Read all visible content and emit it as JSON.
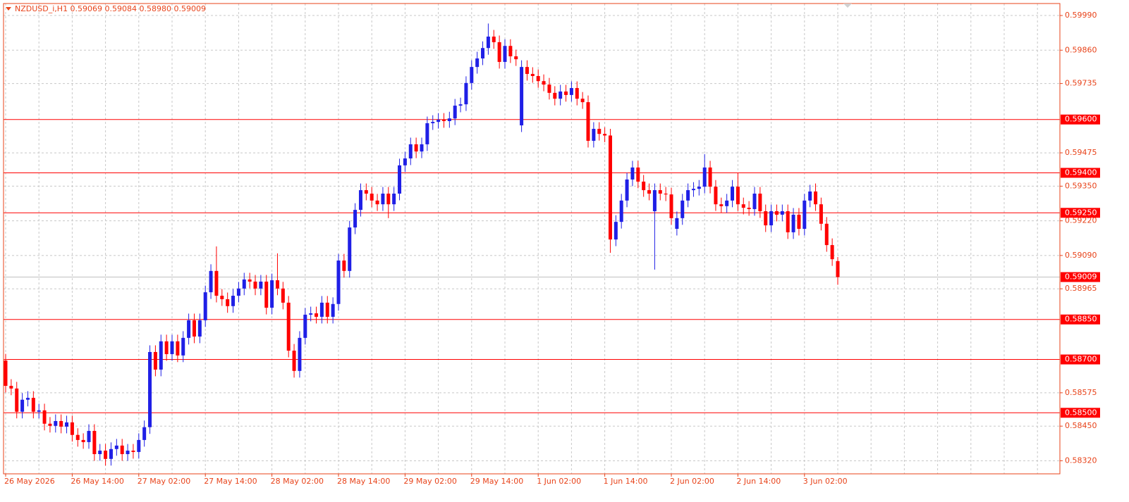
{
  "chart_data": {
    "type": "candlestick",
    "title": "NZDUSD_i,H1  0.59069 0.59084 0.58980 0.59009",
    "up_color": "#1f1fe6",
    "down_color": "#ff0000",
    "level_color": "#ff0000",
    "current_price_color": "#c0c0c0",
    "grid": true,
    "ylim": [
      0.58271,
      0.60035
    ],
    "yticks": [
      {
        "value": 0.5999,
        "label": "0.59990"
      },
      {
        "value": 0.5986,
        "label": "0.59860"
      },
      0.59735,
      0.59475,
      {
        "value": 0.5935,
        "label": "0.59350"
      },
      {
        "value": 0.5922,
        "label": "0.59220"
      },
      {
        "value": 0.5909,
        "label": "0.59090"
      },
      0.58965,
      0.58575,
      {
        "value": 0.5845,
        "label": "0.58450"
      },
      {
        "value": 0.5832,
        "label": "0.58320"
      }
    ],
    "levels": [
      {
        "value": 0.596,
        "label": "0.59600"
      },
      {
        "value": 0.594,
        "label": "0.59400"
      },
      {
        "value": 0.5925,
        "label": "0.59250"
      },
      {
        "value": 0.5885,
        "label": "0.58850"
      },
      {
        "value": 0.587,
        "label": "0.58700"
      },
      {
        "value": 0.585,
        "label": "0.58500"
      }
    ],
    "current_price": 0.59009,
    "categories": [
      "26 May 2026",
      null,
      null,
      null,
      null,
      null,
      null,
      null,
      null,
      null,
      null,
      null,
      "26 May 14:00",
      null,
      null,
      null,
      null,
      null,
      null,
      null,
      null,
      null,
      null,
      null,
      "27 May 02:00",
      null,
      null,
      null,
      null,
      null,
      null,
      null,
      null,
      null,
      null,
      null,
      "27 May 14:00",
      null,
      null,
      null,
      null,
      null,
      null,
      null,
      null,
      null,
      null,
      null,
      "28 May 02:00",
      null,
      null,
      null,
      null,
      null,
      null,
      null,
      null,
      null,
      null,
      null,
      "28 May 14:00",
      null,
      null,
      null,
      null,
      null,
      null,
      null,
      null,
      null,
      null,
      null,
      "29 May 02:00",
      null,
      null,
      null,
      null,
      null,
      null,
      null,
      null,
      null,
      null,
      null,
      "29 May 14:00",
      null,
      null,
      null,
      null,
      null,
      null,
      null,
      null,
      null,
      null,
      null,
      "1 Jun 02:00",
      null,
      null,
      null,
      null,
      null,
      null,
      null,
      null,
      null,
      null,
      null,
      "1 Jun 14:00",
      null,
      null,
      null,
      null,
      null,
      null,
      null,
      null,
      null,
      null,
      null,
      "2 Jun 02:00",
      null,
      null,
      null,
      null,
      null,
      null,
      null,
      null,
      null,
      null,
      null,
      "2 Jun 14:00",
      null,
      null,
      null,
      null,
      null,
      null,
      null,
      null,
      null,
      null,
      null,
      "3 Jun 02:00",
      null,
      null,
      null,
      null,
      null,
      null
    ],
    "open": [
      0.58696,
      0.58601,
      0.58591,
      0.58504,
      0.58549,
      0.58556,
      0.58504,
      0.58509,
      0.58459,
      0.58451,
      0.58469,
      0.58448,
      0.58464,
      0.58417,
      0.58398,
      0.5839,
      0.58432,
      0.58345,
      0.58358,
      0.58327,
      0.58364,
      0.58377,
      0.58345,
      0.58358,
      0.58353,
      0.58398,
      0.58446,
      0.58728,
      0.58662,
      0.58768,
      0.5872,
      0.58768,
      0.58715,
      0.58781,
      0.58847,
      0.58786,
      0.58847,
      0.58952,
      0.59032,
      0.58939,
      0.58926,
      0.589,
      0.58939,
      0.58966,
      0.59,
      0.58992,
      0.58966,
      0.58992,
      0.58894,
      0.58997,
      0.58966,
      0.58913,
      0.58733,
      0.58657,
      0.58781,
      0.58868,
      0.58873,
      0.5886,
      0.58913,
      0.5886,
      0.58908,
      0.59071,
      0.59032,
      0.59195,
      0.59261,
      0.59335,
      0.59322,
      0.59296,
      0.59282,
      0.59322,
      0.59282,
      0.59322,
      0.59428,
      0.59454,
      0.59507,
      0.5948,
      0.59507,
      0.59586,
      0.59591,
      0.59599,
      0.59594,
      0.59604,
      0.59652,
      0.59657,
      0.59737,
      0.59797,
      0.59829,
      0.59868,
      0.59911,
      0.5989,
      0.59816,
      0.59876,
      0.59837,
      0.59578,
      0.59797,
      0.59771,
      0.59763,
      0.59744,
      0.59731,
      0.597,
      0.59678,
      0.59705,
      0.59692,
      0.59718,
      0.59678,
      0.59665,
      0.5952,
      0.59565,
      0.59546,
      0.5954,
      0.5915,
      0.59216,
      0.59296,
      0.59375,
      0.5942,
      0.59367,
      0.59335,
      0.59256,
      0.59335,
      0.59322,
      0.59319,
      0.5919,
      0.5923,
      0.59296,
      0.59335,
      0.5934,
      0.59348,
      0.5942,
      0.59348,
      0.59282,
      0.59275,
      0.59296,
      0.59348,
      0.59282,
      0.59269,
      0.59264,
      0.59322,
      0.59256,
      0.59203,
      0.59256,
      0.59243,
      0.59256,
      0.59177,
      0.59243,
      0.5919,
      0.59296,
      0.5933,
      0.59282,
      0.59209,
      0.59129,
      0.59069
    ],
    "high": [
      0.58721,
      0.58626,
      0.58616,
      0.58574,
      0.58581,
      0.58581,
      0.58534,
      0.58534,
      0.58484,
      0.58494,
      0.58494,
      0.58489,
      0.58489,
      0.58442,
      0.58423,
      0.58457,
      0.58457,
      0.58383,
      0.58383,
      0.58389,
      0.58402,
      0.58402,
      0.58383,
      0.58383,
      0.58423,
      0.58471,
      0.58753,
      0.58753,
      0.58793,
      0.58793,
      0.58793,
      0.58793,
      0.58806,
      0.58872,
      0.58872,
      0.58872,
      0.58977,
      0.59057,
      0.59124,
      0.58964,
      0.58951,
      0.58964,
      0.58991,
      0.59025,
      0.59025,
      0.59017,
      0.59017,
      0.59017,
      0.59022,
      0.59098,
      0.58991,
      0.58938,
      0.58758,
      0.58806,
      0.58893,
      0.58898,
      0.58898,
      0.58938,
      0.58938,
      0.58933,
      0.59096,
      0.59096,
      0.5922,
      0.59286,
      0.5936,
      0.5936,
      0.59347,
      0.59321,
      0.59347,
      0.59347,
      0.59347,
      0.59453,
      0.59479,
      0.59532,
      0.59532,
      0.59532,
      0.59611,
      0.59616,
      0.59624,
      0.59624,
      0.59629,
      0.59677,
      0.59682,
      0.59762,
      0.59822,
      0.59854,
      0.59893,
      0.5996,
      0.59936,
      0.59915,
      0.59901,
      0.59901,
      0.59862,
      0.59822,
      0.59822,
      0.59796,
      0.59788,
      0.59769,
      0.59756,
      0.59725,
      0.5973,
      0.5973,
      0.59743,
      0.59743,
      0.59703,
      0.5969,
      0.5959,
      0.5959,
      0.59571,
      0.59565,
      0.59241,
      0.59321,
      0.594,
      0.59445,
      0.59445,
      0.59392,
      0.5936,
      0.5936,
      0.5936,
      0.59347,
      0.59344,
      0.59255,
      0.59321,
      0.5936,
      0.59365,
      0.59373,
      0.5947,
      0.59445,
      0.59373,
      0.59307,
      0.59321,
      0.59373,
      0.594,
      0.59307,
      0.59294,
      0.59347,
      0.59347,
      0.59281,
      0.59281,
      0.59281,
      0.59281,
      0.59281,
      0.59268,
      0.59268,
      0.59321,
      0.59355,
      0.5936,
      0.59307,
      0.59234,
      0.59154,
      0.59084
    ],
    "low": [
      0.58576,
      0.58566,
      0.58479,
      0.58479,
      0.58524,
      0.58479,
      0.58479,
      0.58434,
      0.58426,
      0.58426,
      0.58423,
      0.58423,
      0.58392,
      0.58373,
      0.58365,
      0.58365,
      0.5832,
      0.5832,
      0.58302,
      0.58302,
      0.58339,
      0.5832,
      0.5832,
      0.58328,
      0.58328,
      0.58373,
      0.58421,
      0.58637,
      0.58637,
      0.58695,
      0.58695,
      0.5869,
      0.5869,
      0.58756,
      0.58761,
      0.58761,
      0.58822,
      0.58927,
      0.58914,
      0.58901,
      0.58875,
      0.58875,
      0.58914,
      0.58941,
      0.58967,
      0.58941,
      0.58941,
      0.58869,
      0.58869,
      0.58941,
      0.58888,
      0.58708,
      0.58632,
      0.58632,
      0.58756,
      0.58843,
      0.58835,
      0.58835,
      0.58835,
      0.58835,
      0.58883,
      0.59007,
      0.59007,
      0.5917,
      0.59236,
      0.59297,
      0.59271,
      0.59257,
      0.59257,
      0.5923,
      0.59257,
      0.59297,
      0.59403,
      0.59429,
      0.59455,
      0.59455,
      0.59482,
      0.59561,
      0.59566,
      0.59569,
      0.59569,
      0.59579,
      0.59627,
      0.59632,
      0.59712,
      0.59772,
      0.59804,
      0.59843,
      0.59865,
      0.59791,
      0.59791,
      0.59812,
      0.59801,
      0.59553,
      0.59746,
      0.59738,
      0.59719,
      0.59706,
      0.59675,
      0.59653,
      0.59653,
      0.59667,
      0.59667,
      0.59653,
      0.5964,
      0.59495,
      0.59495,
      0.59521,
      0.59515,
      0.591,
      0.59125,
      0.59191,
      0.59271,
      0.5935,
      0.59342,
      0.5931,
      0.59297,
      0.59037,
      0.59297,
      0.59294,
      0.59205,
      0.59165,
      0.59205,
      0.59271,
      0.5931,
      0.59315,
      0.59323,
      0.59323,
      0.59257,
      0.5925,
      0.5925,
      0.59271,
      0.59257,
      0.59244,
      0.59239,
      0.59239,
      0.59231,
      0.59178,
      0.59178,
      0.59218,
      0.59218,
      0.59152,
      0.59152,
      0.59165,
      0.59165,
      0.59271,
      0.59257,
      0.59184,
      0.59104,
      0.59051,
      0.5898
    ],
    "close": [
      0.58601,
      0.58591,
      0.58504,
      0.58549,
      0.58556,
      0.58504,
      0.58509,
      0.58459,
      0.58451,
      0.58469,
      0.58448,
      0.58464,
      0.58417,
      0.58398,
      0.5839,
      0.58432,
      0.58345,
      0.58358,
      0.58327,
      0.58364,
      0.58377,
      0.58345,
      0.58358,
      0.58353,
      0.58398,
      0.58446,
      0.58728,
      0.58662,
      0.58768,
      0.5872,
      0.58768,
      0.58715,
      0.58781,
      0.58847,
      0.58786,
      0.58847,
      0.58952,
      0.59032,
      0.58939,
      0.58926,
      0.589,
      0.58939,
      0.58966,
      0.59,
      0.58992,
      0.58966,
      0.58992,
      0.58894,
      0.58997,
      0.58966,
      0.58913,
      0.58733,
      0.58657,
      0.58781,
      0.58868,
      0.58873,
      0.5886,
      0.58913,
      0.5886,
      0.58908,
      0.59071,
      0.59032,
      0.59195,
      0.59261,
      0.59335,
      0.59322,
      0.59296,
      0.59282,
      0.59322,
      0.59282,
      0.59322,
      0.59428,
      0.59454,
      0.59507,
      0.5948,
      0.59507,
      0.59586,
      0.59591,
      0.59599,
      0.59594,
      0.59604,
      0.59652,
      0.59657,
      0.59737,
      0.59797,
      0.59829,
      0.59868,
      0.59911,
      0.5989,
      0.59816,
      0.59876,
      0.59837,
      0.59826,
      0.59797,
      0.59771,
      0.59763,
      0.59744,
      0.59731,
      0.597,
      0.59678,
      0.59705,
      0.59692,
      0.59718,
      0.59678,
      0.59665,
      0.5952,
      0.59565,
      0.59546,
      0.5954,
      0.5915,
      0.59216,
      0.59296,
      0.59375,
      0.5942,
      0.59367,
      0.59335,
      0.59322,
      0.59335,
      0.59322,
      0.59319,
      0.5923,
      0.5923,
      0.59296,
      0.59335,
      0.5934,
      0.59348,
      0.5942,
      0.59348,
      0.59282,
      0.59275,
      0.59296,
      0.59348,
      0.59282,
      0.59269,
      0.59264,
      0.59322,
      0.59256,
      0.59203,
      0.59256,
      0.59243,
      0.59256,
      0.59177,
      0.59243,
      0.5919,
      0.59296,
      0.5933,
      0.59282,
      0.59209,
      0.59129,
      0.59076,
      0.59009
    ]
  }
}
